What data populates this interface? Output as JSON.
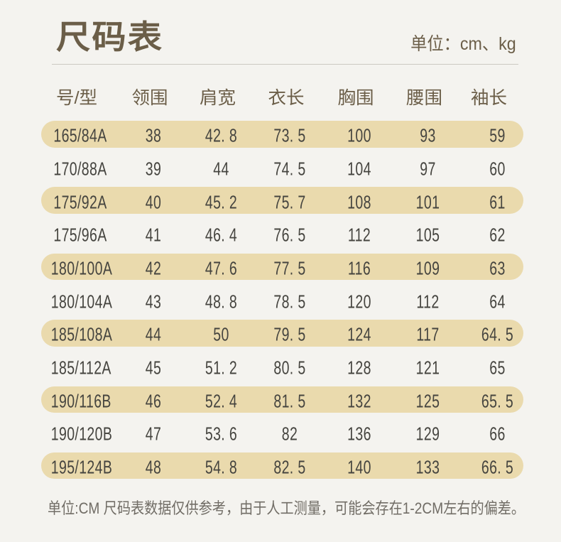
{
  "title": "尺码表",
  "unit_note": "单位：cm、kg",
  "table": {
    "columns": [
      "号/型",
      "领围",
      "肩宽",
      "衣长",
      "胸围",
      "腰围",
      "袖长"
    ],
    "rows": [
      [
        "165/84A",
        "38",
        "42. 8",
        "73. 5",
        "100",
        "93",
        "59"
      ],
      [
        "170/88A",
        "39",
        "44",
        "74. 5",
        "104",
        "97",
        "60"
      ],
      [
        "175/92A",
        "40",
        "45. 2",
        "75. 7",
        "108",
        "101",
        "61"
      ],
      [
        "175/96A",
        "41",
        "46. 4",
        "76. 5",
        "112",
        "105",
        "62"
      ],
      [
        "180/100A",
        "42",
        "47. 6",
        "77. 5",
        "116",
        "109",
        "63"
      ],
      [
        "180/104A",
        "43",
        "48. 8",
        "78. 5",
        "120",
        "112",
        "64"
      ],
      [
        "185/108A",
        "44",
        "50",
        "79. 5",
        "124",
        "117",
        "64. 5"
      ],
      [
        "185/112A",
        "45",
        "51. 2",
        "80. 5",
        "128",
        "121",
        "65"
      ],
      [
        "190/116B",
        "46",
        "52. 4",
        "81. 5",
        "132",
        "125",
        "65. 5"
      ],
      [
        "190/120B",
        "47",
        "53. 6",
        "82",
        "136",
        "129",
        "66"
      ],
      [
        "195/124B",
        "48",
        "54. 8",
        "82. 5",
        "140",
        "133",
        "66. 5"
      ]
    ],
    "stripe_color": "#eadaad"
  },
  "footnote": "单位:CM 尺码表数据仅供参考，由于人工测量，可能会存在1-2CM左右的偏差。",
  "colors": {
    "background": "#f4f3ef",
    "title_text": "#6b5e48",
    "cell_text": "#45443f",
    "stripe": "#eadaad",
    "footnote_text": "#716d66",
    "divider": "#ccc9c1"
  }
}
